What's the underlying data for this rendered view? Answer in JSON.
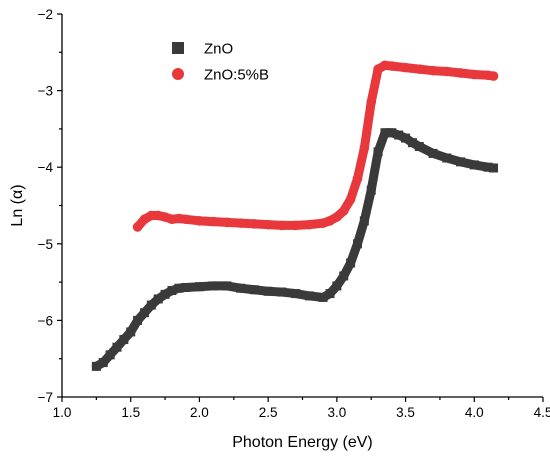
{
  "chart_data": {
    "type": "scatter",
    "title": "",
    "xlabel": "Photon Energy (eV)",
    "ylabel": "Ln (α)",
    "xlim": [
      1.0,
      4.5
    ],
    "ylim": [
      -7,
      -2
    ],
    "x_ticks": [
      "1.0",
      "1.5",
      "2.0",
      "2.5",
      "3.0",
      "3.5",
      "4.0",
      "4.5"
    ],
    "y_ticks": [
      "−7",
      "−6",
      "−5",
      "−4",
      "−3",
      "−2"
    ],
    "grid": false,
    "legend_position": "top-left",
    "series": [
      {
        "name": "ZnO",
        "color": "#3a3a3a",
        "marker": "square",
        "x": [
          1.25,
          1.3,
          1.35,
          1.4,
          1.45,
          1.5,
          1.55,
          1.6,
          1.65,
          1.7,
          1.75,
          1.8,
          1.85,
          1.9,
          2.0,
          2.1,
          2.2,
          2.3,
          2.4,
          2.5,
          2.6,
          2.7,
          2.8,
          2.9,
          2.95,
          3.0,
          3.05,
          3.1,
          3.15,
          3.2,
          3.25,
          3.3,
          3.35,
          3.4,
          3.45,
          3.5,
          3.55,
          3.6,
          3.7,
          3.8,
          3.9,
          4.0,
          4.1,
          4.14
        ],
        "y": [
          -6.6,
          -6.55,
          -6.45,
          -6.35,
          -6.25,
          -6.15,
          -6.0,
          -5.9,
          -5.8,
          -5.72,
          -5.66,
          -5.61,
          -5.58,
          -5.57,
          -5.56,
          -5.55,
          -5.55,
          -5.58,
          -5.6,
          -5.62,
          -5.63,
          -5.65,
          -5.68,
          -5.7,
          -5.65,
          -5.55,
          -5.42,
          -5.25,
          -5.0,
          -4.7,
          -4.3,
          -3.8,
          -3.55,
          -3.55,
          -3.58,
          -3.62,
          -3.68,
          -3.73,
          -3.82,
          -3.88,
          -3.93,
          -3.97,
          -4.0,
          -4.01
        ]
      },
      {
        "name": "ZnO:5%B",
        "color": "#e8383b",
        "marker": "circle",
        "x": [
          1.55,
          1.6,
          1.65,
          1.7,
          1.75,
          1.8,
          1.85,
          1.9,
          2.0,
          2.1,
          2.2,
          2.3,
          2.4,
          2.5,
          2.6,
          2.7,
          2.8,
          2.9,
          2.95,
          3.0,
          3.05,
          3.1,
          3.15,
          3.2,
          3.25,
          3.3,
          3.35,
          3.4,
          3.5,
          3.6,
          3.7,
          3.8,
          3.9,
          4.0,
          4.1,
          4.14
        ],
        "y": [
          -4.78,
          -4.68,
          -4.63,
          -4.63,
          -4.65,
          -4.68,
          -4.67,
          -4.68,
          -4.7,
          -4.71,
          -4.72,
          -4.73,
          -4.74,
          -4.75,
          -4.76,
          -4.76,
          -4.75,
          -4.73,
          -4.7,
          -4.65,
          -4.57,
          -4.42,
          -4.15,
          -3.75,
          -3.15,
          -2.72,
          -2.67,
          -2.68,
          -2.7,
          -2.72,
          -2.74,
          -2.75,
          -2.77,
          -2.79,
          -2.8,
          -2.81
        ]
      }
    ]
  }
}
